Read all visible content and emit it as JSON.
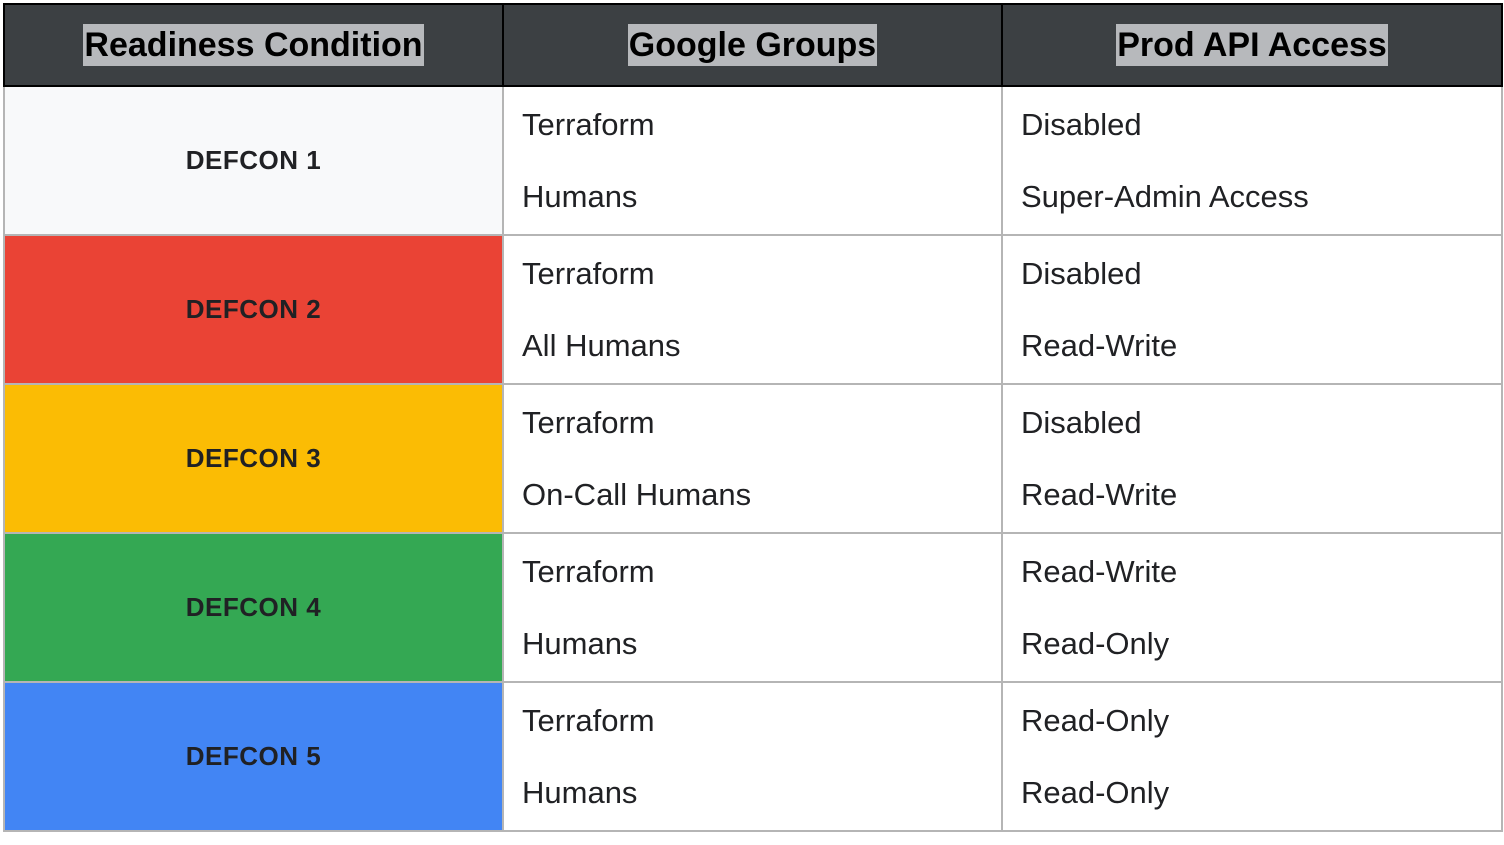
{
  "headers": [
    "Readiness Condition",
    "Google Groups",
    "Prod API Access"
  ],
  "rows": [
    {
      "level": "DEFCON 1",
      "color": "#f8f9fa",
      "groups": [
        "Terraform",
        "Humans"
      ],
      "access": [
        "Disabled",
        "Super-Admin Access"
      ]
    },
    {
      "level": "DEFCON 2",
      "color": "#ea4335",
      "groups": [
        "Terraform",
        "All Humans"
      ],
      "access": [
        "Disabled",
        "Read-Write"
      ]
    },
    {
      "level": "DEFCON 3",
      "color": "#fbbc04",
      "groups": [
        "Terraform",
        "On-Call Humans"
      ],
      "access": [
        "Disabled",
        "Read-Write"
      ]
    },
    {
      "level": "DEFCON 4",
      "color": "#34a853",
      "groups": [
        "Terraform",
        "Humans"
      ],
      "access": [
        "Read-Write",
        "Read-Only"
      ]
    },
    {
      "level": "DEFCON 5",
      "color": "#4285f4",
      "groups": [
        "Terraform",
        "Humans"
      ],
      "access": [
        "Read-Only",
        "Read-Only"
      ]
    }
  ]
}
